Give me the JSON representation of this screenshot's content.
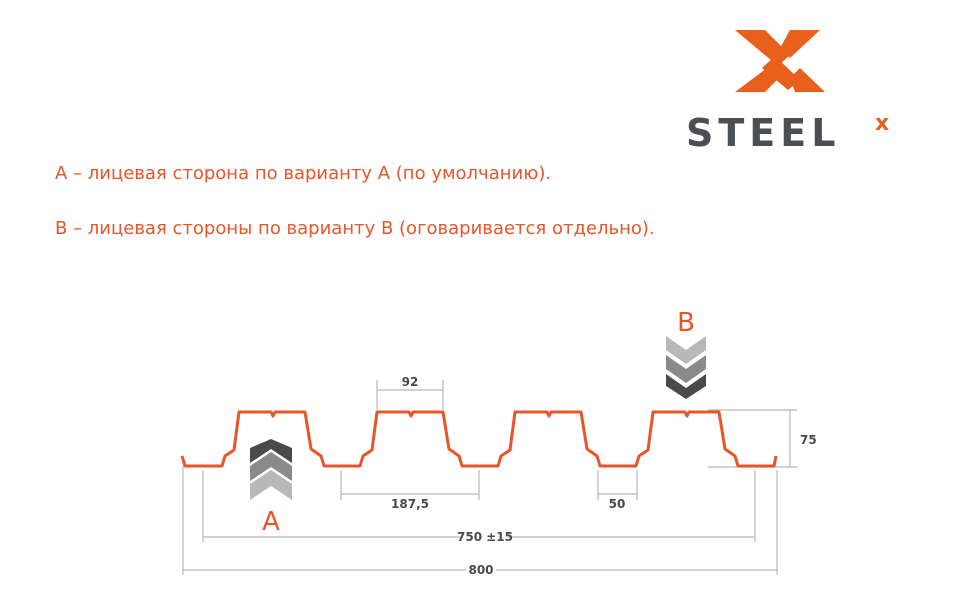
{
  "logo": {
    "text": "STEELX",
    "brand_colors": {
      "orange": "#e8601c",
      "gray": "#4b4f54"
    }
  },
  "captions": [
    "A – лицевая сторона по варианту А (по умолчанию).",
    "В – лицевая стороны по варианту В (оговаривается отдельно)."
  ],
  "diagram": {
    "profile_color": "#e8552a",
    "side_labels": {
      "a": "A",
      "b": "B"
    },
    "chevron_colors": [
      "#4a4a4a",
      "#8a8a8a",
      "#b8b8b8"
    ],
    "dimensions": {
      "rib_top": "92",
      "pitch": "187,5",
      "valley": "50",
      "height": "75",
      "useful_width": "750 ±15",
      "total_width": "800"
    }
  }
}
